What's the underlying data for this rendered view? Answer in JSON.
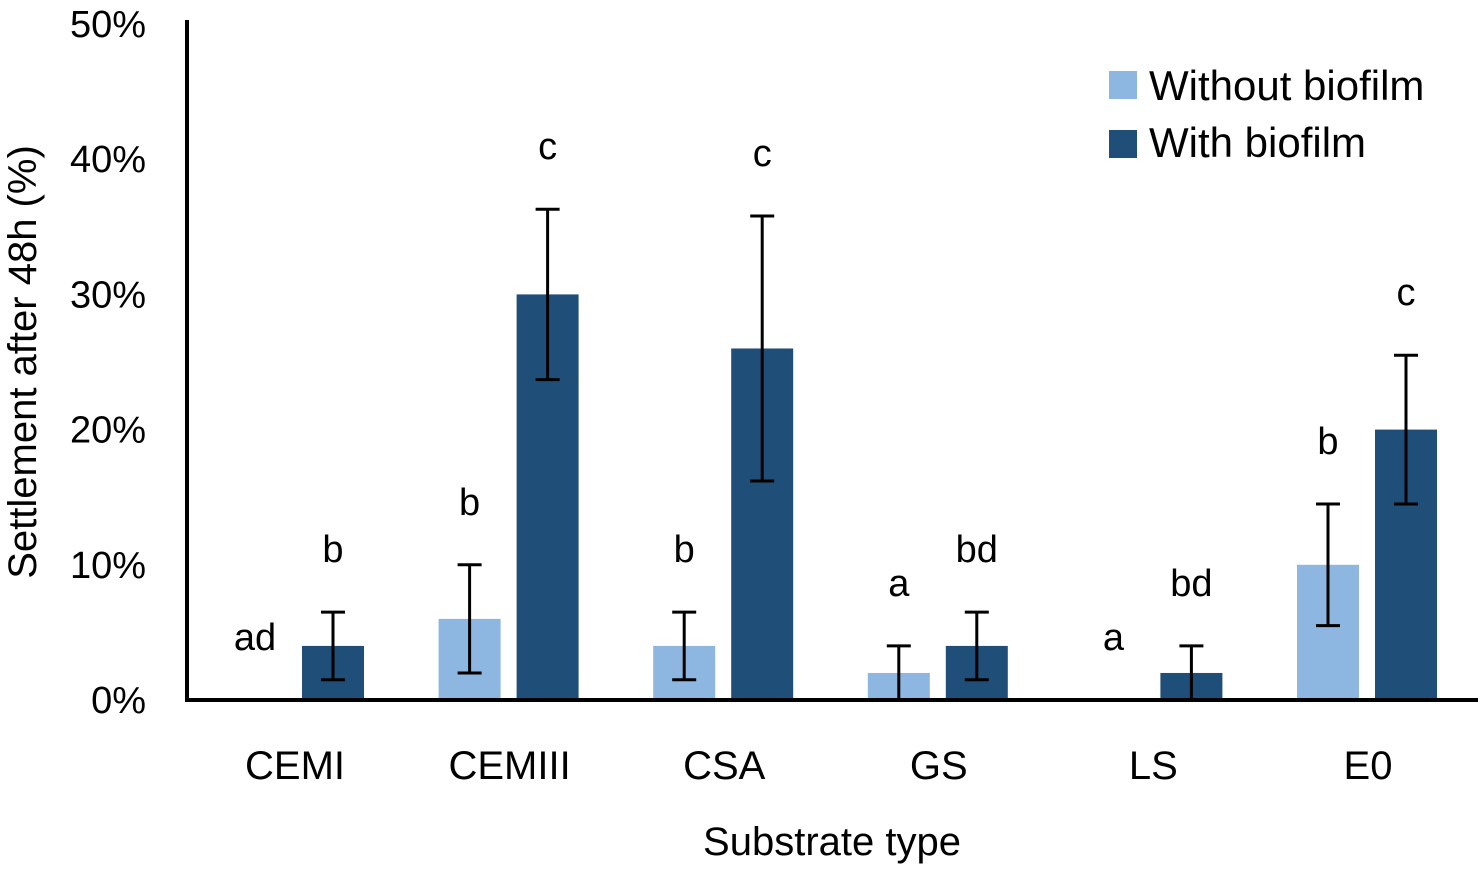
{
  "chart_data": {
    "type": "bar",
    "title": "",
    "xlabel": "Substrate type",
    "ylabel": "Settlement after 48h (%)",
    "ylim": [
      0,
      50
    ],
    "yticks": [
      "0%",
      "10%",
      "20%",
      "30%",
      "40%",
      "50%"
    ],
    "ytick_values": [
      0,
      10,
      20,
      30,
      40,
      50
    ],
    "categories": [
      "CEMI",
      "CEMIII",
      "CSA",
      "GS",
      "LS",
      "E0"
    ],
    "legend_position": "top-right",
    "grid": false,
    "series": [
      {
        "name": "Without biofilm",
        "color": "#8DB6E0",
        "values": [
          0,
          6,
          4,
          2,
          0,
          10
        ],
        "errors": [
          null,
          4,
          2.5,
          2,
          null,
          4.5
        ],
        "significance": [
          "ad",
          "b",
          "b",
          "a",
          "a",
          "b"
        ]
      },
      {
        "name": "With biofilm",
        "color": "#1F4E79",
        "values": [
          4,
          30,
          26,
          4,
          2,
          20
        ],
        "errors": [
          2.5,
          6.3,
          9.8,
          2.5,
          2,
          5.5
        ],
        "significance": [
          "b",
          "c",
          "c",
          "bd",
          "bd",
          "c"
        ]
      }
    ]
  }
}
